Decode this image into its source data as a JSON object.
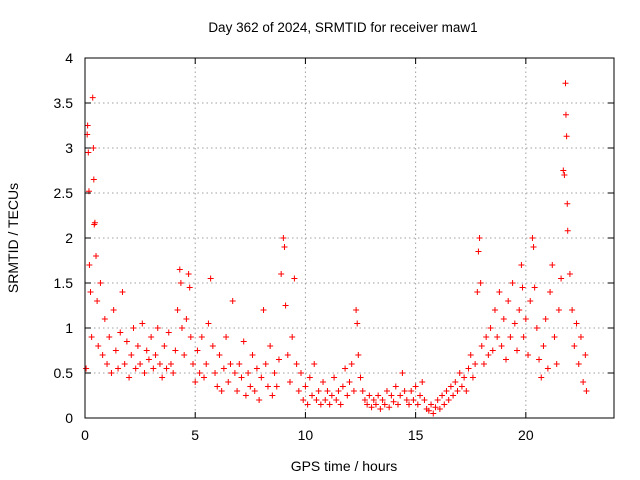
{
  "chart_data": {
    "type": "scatter",
    "title": "Day 362 of 2024, SRMTID for receiver maw1",
    "xlabel": "GPS time / hours",
    "ylabel": "SRMTID / TECUs",
    "xlim": [
      0,
      24
    ],
    "ylim": [
      0,
      4
    ],
    "x_ticks": [
      0,
      5,
      10,
      15,
      20
    ],
    "x_tick_labels": [
      "0",
      "5",
      "10",
      "15",
      "20"
    ],
    "y_ticks": [
      0,
      0.5,
      1,
      1.5,
      2,
      2.5,
      3,
      3.5,
      4
    ],
    "y_tick_labels": [
      "0",
      "0.5",
      "1",
      "1.5",
      "2",
      "2.5",
      "3",
      "3.5",
      "4"
    ],
    "grid": true,
    "marker": "+",
    "series_color": "#ff0000",
    "series": [
      {
        "name": "SRMTID",
        "points": [
          [
            0.05,
            0.55
          ],
          [
            0.1,
            3.15
          ],
          [
            0.12,
            3.25
          ],
          [
            0.15,
            2.95
          ],
          [
            0.18,
            2.52
          ],
          [
            0.2,
            1.7
          ],
          [
            0.25,
            1.4
          ],
          [
            0.3,
            0.9
          ],
          [
            0.35,
            3.56
          ],
          [
            0.38,
            3.0
          ],
          [
            0.4,
            2.65
          ],
          [
            0.42,
            2.15
          ],
          [
            0.45,
            2.17
          ],
          [
            0.5,
            1.8
          ],
          [
            0.55,
            1.3
          ],
          [
            0.6,
            0.8
          ],
          [
            0.7,
            1.5
          ],
          [
            0.8,
            0.7
          ],
          [
            0.9,
            1.1
          ],
          [
            1.0,
            0.6
          ],
          [
            1.1,
            0.9
          ],
          [
            1.2,
            0.5
          ],
          [
            1.3,
            1.2
          ],
          [
            1.4,
            0.75
          ],
          [
            1.5,
            0.55
          ],
          [
            1.6,
            0.95
          ],
          [
            1.7,
            1.4
          ],
          [
            1.8,
            0.6
          ],
          [
            1.9,
            0.85
          ],
          [
            2.0,
            0.45
          ],
          [
            2.1,
            0.7
          ],
          [
            2.2,
            1.0
          ],
          [
            2.3,
            0.55
          ],
          [
            2.4,
            0.8
          ],
          [
            2.5,
            0.6
          ],
          [
            2.6,
            1.05
          ],
          [
            2.7,
            0.5
          ],
          [
            2.8,
            0.75
          ],
          [
            2.9,
            0.65
          ],
          [
            3.0,
            0.9
          ],
          [
            3.1,
            0.55
          ],
          [
            3.2,
            0.7
          ],
          [
            3.3,
            1.0
          ],
          [
            3.4,
            0.6
          ],
          [
            3.5,
            0.45
          ],
          [
            3.6,
            0.8
          ],
          [
            3.7,
            0.55
          ],
          [
            3.8,
            0.95
          ],
          [
            3.9,
            0.6
          ],
          [
            4.0,
            0.5
          ],
          [
            4.1,
            0.75
          ],
          [
            4.2,
            1.2
          ],
          [
            4.3,
            1.65
          ],
          [
            4.35,
            1.5
          ],
          [
            4.4,
            1.0
          ],
          [
            4.5,
            0.7
          ],
          [
            4.6,
            1.1
          ],
          [
            4.7,
            1.6
          ],
          [
            4.75,
            1.45
          ],
          [
            4.8,
            0.9
          ],
          [
            4.9,
            0.6
          ],
          [
            5.0,
            0.4
          ],
          [
            5.1,
            0.75
          ],
          [
            5.2,
            0.5
          ],
          [
            5.3,
            0.9
          ],
          [
            5.4,
            0.45
          ],
          [
            5.5,
            0.6
          ],
          [
            5.6,
            1.05
          ],
          [
            5.7,
            1.55
          ],
          [
            5.8,
            0.8
          ],
          [
            5.9,
            0.5
          ],
          [
            6.0,
            0.35
          ],
          [
            6.1,
            0.7
          ],
          [
            6.2,
            0.3
          ],
          [
            6.3,
            0.55
          ],
          [
            6.4,
            0.9
          ],
          [
            6.5,
            0.4
          ],
          [
            6.6,
            0.6
          ],
          [
            6.7,
            1.3
          ],
          [
            6.8,
            0.5
          ],
          [
            6.9,
            0.3
          ],
          [
            7.0,
            0.6
          ],
          [
            7.1,
            0.45
          ],
          [
            7.2,
            0.85
          ],
          [
            7.3,
            0.25
          ],
          [
            7.4,
            0.5
          ],
          [
            7.5,
            0.35
          ],
          [
            7.6,
            0.7
          ],
          [
            7.7,
            0.3
          ],
          [
            7.8,
            0.55
          ],
          [
            7.9,
            0.2
          ],
          [
            8.0,
            0.45
          ],
          [
            8.1,
            1.2
          ],
          [
            8.2,
            0.6
          ],
          [
            8.3,
            0.35
          ],
          [
            8.4,
            0.8
          ],
          [
            8.5,
            0.25
          ],
          [
            8.6,
            0.5
          ],
          [
            8.7,
            0.35
          ],
          [
            8.8,
            0.65
          ],
          [
            8.9,
            1.6
          ],
          [
            9.0,
            2.0
          ],
          [
            9.05,
            1.9
          ],
          [
            9.1,
            1.25
          ],
          [
            9.2,
            0.7
          ],
          [
            9.3,
            0.4
          ],
          [
            9.4,
            0.9
          ],
          [
            9.5,
            1.55
          ],
          [
            9.6,
            0.6
          ],
          [
            9.7,
            0.3
          ],
          [
            9.8,
            0.5
          ],
          [
            9.9,
            0.2
          ],
          [
            10.0,
            0.35
          ],
          [
            10.1,
            0.15
          ],
          [
            10.2,
            0.45
          ],
          [
            10.3,
            0.25
          ],
          [
            10.4,
            0.6
          ],
          [
            10.5,
            0.2
          ],
          [
            10.6,
            0.3
          ],
          [
            10.7,
            0.15
          ],
          [
            10.8,
            0.4
          ],
          [
            10.9,
            0.2
          ],
          [
            11.0,
            0.3
          ],
          [
            11.1,
            0.15
          ],
          [
            11.2,
            0.25
          ],
          [
            11.3,
            0.45
          ],
          [
            11.4,
            0.2
          ],
          [
            11.5,
            0.3
          ],
          [
            11.6,
            0.15
          ],
          [
            11.7,
            0.35
          ],
          [
            11.8,
            0.55
          ],
          [
            11.9,
            0.25
          ],
          [
            12.0,
            0.4
          ],
          [
            12.1,
            0.6
          ],
          [
            12.2,
            0.3
          ],
          [
            12.3,
            1.2
          ],
          [
            12.35,
            1.05
          ],
          [
            12.4,
            0.7
          ],
          [
            12.5,
            0.45
          ],
          [
            12.6,
            0.3
          ],
          [
            12.7,
            0.2
          ],
          [
            12.8,
            0.15
          ],
          [
            12.9,
            0.25
          ],
          [
            13.0,
            0.12
          ],
          [
            13.1,
            0.2
          ],
          [
            13.2,
            0.15
          ],
          [
            13.3,
            0.25
          ],
          [
            13.4,
            0.1
          ],
          [
            13.5,
            0.2
          ],
          [
            13.6,
            0.15
          ],
          [
            13.7,
            0.3
          ],
          [
            13.8,
            0.12
          ],
          [
            13.9,
            0.25
          ],
          [
            14.0,
            0.18
          ],
          [
            14.1,
            0.35
          ],
          [
            14.2,
            0.15
          ],
          [
            14.3,
            0.25
          ],
          [
            14.4,
            0.5
          ],
          [
            14.5,
            0.3
          ],
          [
            14.6,
            0.2
          ],
          [
            14.7,
            0.15
          ],
          [
            14.8,
            0.3
          ],
          [
            14.9,
            0.2
          ],
          [
            15.0,
            0.35
          ],
          [
            15.1,
            0.15
          ],
          [
            15.2,
            0.25
          ],
          [
            15.3,
            0.4
          ],
          [
            15.4,
            0.2
          ],
          [
            15.5,
            0.1
          ],
          [
            15.6,
            0.08
          ],
          [
            15.7,
            0.15
          ],
          [
            15.8,
            0.05
          ],
          [
            15.9,
            0.12
          ],
          [
            16.0,
            0.2
          ],
          [
            16.1,
            0.1
          ],
          [
            16.2,
            0.25
          ],
          [
            16.3,
            0.15
          ],
          [
            16.4,
            0.3
          ],
          [
            16.5,
            0.2
          ],
          [
            16.6,
            0.35
          ],
          [
            16.7,
            0.25
          ],
          [
            16.8,
            0.4
          ],
          [
            16.9,
            0.3
          ],
          [
            17.0,
            0.5
          ],
          [
            17.1,
            0.35
          ],
          [
            17.2,
            0.45
          ],
          [
            17.3,
            0.3
          ],
          [
            17.4,
            0.55
          ],
          [
            17.5,
            0.7
          ],
          [
            17.6,
            0.45
          ],
          [
            17.7,
            0.6
          ],
          [
            17.8,
            1.4
          ],
          [
            17.85,
            1.85
          ],
          [
            17.9,
            2.0
          ],
          [
            17.95,
            1.5
          ],
          [
            18.0,
            0.8
          ],
          [
            18.1,
            0.6
          ],
          [
            18.2,
            0.9
          ],
          [
            18.3,
            0.7
          ],
          [
            18.4,
            1.0
          ],
          [
            18.5,
            0.75
          ],
          [
            18.6,
            1.2
          ],
          [
            18.7,
            0.9
          ],
          [
            18.8,
            1.4
          ],
          [
            18.9,
            0.8
          ],
          [
            19.0,
            1.1
          ],
          [
            19.1,
            0.65
          ],
          [
            19.2,
            1.3
          ],
          [
            19.3,
            0.9
          ],
          [
            19.4,
            1.5
          ],
          [
            19.5,
            1.05
          ],
          [
            19.6,
            0.75
          ],
          [
            19.7,
            1.2
          ],
          [
            19.8,
            1.7
          ],
          [
            19.85,
            1.45
          ],
          [
            19.9,
            0.9
          ],
          [
            20.0,
            1.1
          ],
          [
            20.1,
            0.7
          ],
          [
            20.2,
            1.3
          ],
          [
            20.3,
            2.0
          ],
          [
            20.35,
            1.9
          ],
          [
            20.4,
            1.45
          ],
          [
            20.5,
            1.0
          ],
          [
            20.6,
            0.65
          ],
          [
            20.7,
            0.45
          ],
          [
            20.8,
            0.8
          ],
          [
            20.9,
            1.1
          ],
          [
            21.0,
            0.55
          ],
          [
            21.1,
            1.4
          ],
          [
            21.2,
            1.7
          ],
          [
            21.3,
            0.9
          ],
          [
            21.4,
            0.6
          ],
          [
            21.5,
            1.2
          ],
          [
            21.6,
            1.55
          ],
          [
            21.7,
            2.75
          ],
          [
            21.75,
            2.7
          ],
          [
            21.8,
            3.72
          ],
          [
            21.82,
            3.37
          ],
          [
            21.85,
            3.13
          ],
          [
            21.88,
            2.38
          ],
          [
            21.9,
            2.08
          ],
          [
            22.0,
            1.6
          ],
          [
            22.1,
            1.2
          ],
          [
            22.2,
            0.8
          ],
          [
            22.3,
            1.05
          ],
          [
            22.4,
            0.6
          ],
          [
            22.5,
            0.9
          ],
          [
            22.6,
            0.4
          ],
          [
            22.7,
            0.7
          ],
          [
            22.75,
            0.3
          ]
        ]
      }
    ]
  }
}
